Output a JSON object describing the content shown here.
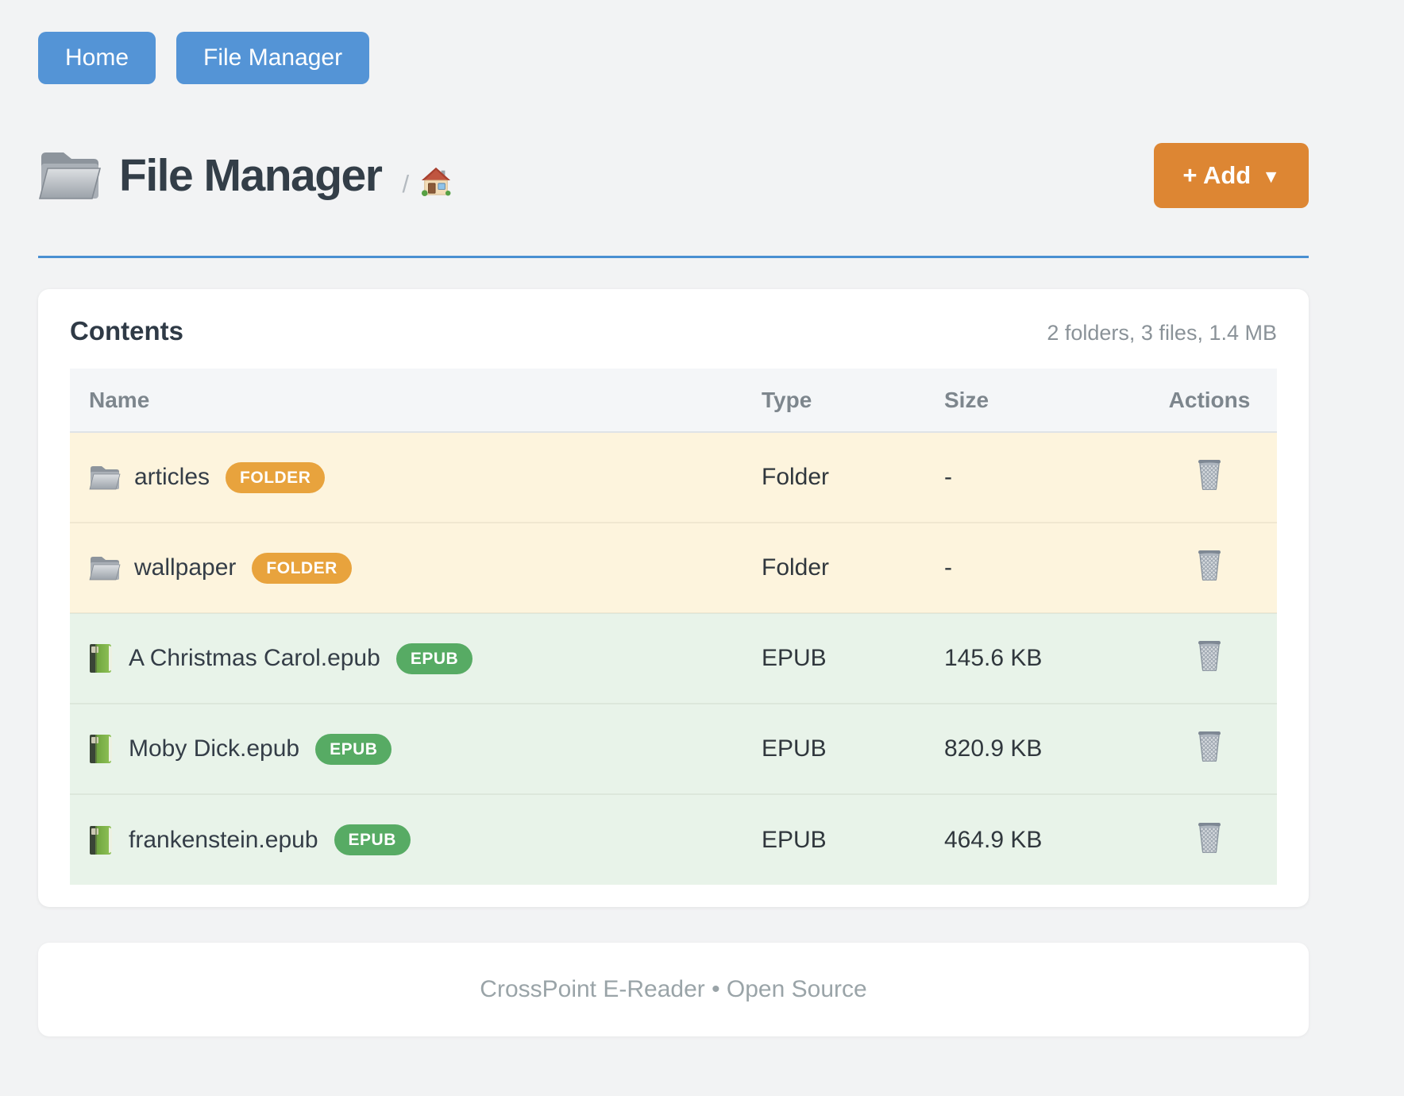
{
  "nav": {
    "home": "Home",
    "file_manager": "File Manager"
  },
  "header": {
    "title": "File Manager",
    "breadcrumb_separator": "/",
    "breadcrumb_home_icon": "house-icon",
    "title_icon": "folder-icon",
    "add_label": "+ Add",
    "add_caret": "▼"
  },
  "contents": {
    "heading": "Contents",
    "summary": "2 folders, 3 files, 1.4 MB",
    "columns": {
      "name": "Name",
      "type": "Type",
      "size": "Size",
      "actions": "Actions"
    },
    "rows": [
      {
        "name": "articles",
        "badge": "FOLDER",
        "kind": "folder",
        "type": "Folder",
        "size": "-",
        "action_icon": "trash-icon"
      },
      {
        "name": "wallpaper",
        "badge": "FOLDER",
        "kind": "folder",
        "type": "Folder",
        "size": "-",
        "action_icon": "trash-icon"
      },
      {
        "name": "A Christmas Carol.epub",
        "badge": "EPUB",
        "kind": "epub",
        "type": "EPUB",
        "size": "145.6 KB",
        "action_icon": "trash-icon"
      },
      {
        "name": "Moby Dick.epub",
        "badge": "EPUB",
        "kind": "epub",
        "type": "EPUB",
        "size": "820.9 KB",
        "action_icon": "trash-icon"
      },
      {
        "name": "frankenstein.epub",
        "badge": "EPUB",
        "kind": "epub",
        "type": "EPUB",
        "size": "464.9 KB",
        "action_icon": "trash-icon"
      }
    ]
  },
  "footer": {
    "text": "CrossPoint E-Reader • Open Source"
  },
  "colors": {
    "page_background": "#f2f3f4",
    "nav_button": "#5494d6",
    "add_button": "#dd8633",
    "title_rule": "#4a90d2",
    "folder_badge": "#e8a33d",
    "epub_badge": "#57ab64",
    "folder_row_bg": "#fdf4dd",
    "epub_row_bg": "#e8f3e9",
    "heading_text": "#2f3a46",
    "muted_text": "#8a9298"
  }
}
